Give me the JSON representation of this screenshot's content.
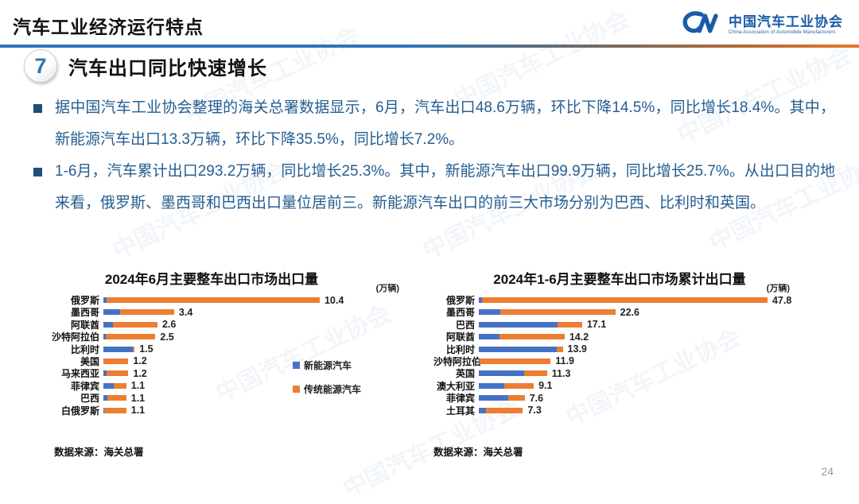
{
  "slide": {
    "header_title": "汽车工业经济运行特点",
    "page_number": "24",
    "watermark_text": "中国汽车工业协会"
  },
  "logo": {
    "name_cn": "中国汽车工业协会",
    "name_en": "China Association of Automobile Manufacturers"
  },
  "section": {
    "number": "7",
    "title": "汽车出口同比快速增长"
  },
  "bullets": [
    "据中国汽车工业协会整理的海关总署数据显示，6月，汽车出口48.6万辆，环比下降14.5%，同比增长18.4%。其中，新能源汽车出口13.3万辆，环比下降35.5%，同比增长7.2%。",
    "1-6月，汽车累计出口293.2万辆，同比增长25.3%。其中，新能源汽车出口99.9万辆，同比增长25.7%。从出口目的地来看，俄罗斯、墨西哥和巴西出口量位居前三。新能源汽车出口的前三大市场分别为巴西、比利时和英国。"
  ],
  "legend": {
    "nev": "新能源汽车",
    "ice": "传统能源汽车"
  },
  "colors": {
    "nev_blue": "#4472C4",
    "ice_orange": "#ED7D31",
    "accent_blue": "#2E75B6",
    "accent_orange": "#E87722",
    "text_blue": "#255E91",
    "logo_blue": "#1B5CA8"
  },
  "source_note": "数据来源：海关总署",
  "chart_data": [
    {
      "type": "bar",
      "orientation": "horizontal",
      "stacked": true,
      "title": "2024年6月主要整车出口市场出口量",
      "unit": "(万辆)",
      "categories": [
        "俄罗斯",
        "墨西哥",
        "阿联酋",
        "沙特阿拉伯",
        "比利时",
        "美国",
        "马来西亚",
        "菲律宾",
        "巴西",
        "白俄罗斯"
      ],
      "totals": [
        10.4,
        3.4,
        2.6,
        2.5,
        1.5,
        1.2,
        1.2,
        1.1,
        1.1,
        1.1
      ],
      "series": [
        {
          "name": "新能源汽车",
          "values": [
            0.15,
            0.8,
            0.45,
            0.1,
            1.4,
            0.0,
            0.15,
            0.5,
            0.2,
            0.05
          ]
        },
        {
          "name": "传统能源汽车",
          "values": [
            10.25,
            2.6,
            2.15,
            2.4,
            0.1,
            1.2,
            1.05,
            0.6,
            0.9,
            1.05
          ]
        }
      ],
      "legend_position": "right",
      "grid": false
    },
    {
      "type": "bar",
      "orientation": "horizontal",
      "stacked": true,
      "title": "2024年1-6月主要整车出口市场累计出口量",
      "unit": "(万辆)",
      "categories": [
        "俄罗斯",
        "墨西哥",
        "巴西",
        "阿联酋",
        "比利时",
        "沙特阿拉伯",
        "英国",
        "澳大利亚",
        "菲律宾",
        "土耳其"
      ],
      "totals": [
        47.8,
        22.6,
        17.1,
        14.2,
        13.9,
        11.9,
        11.3,
        9.1,
        7.6,
        7.3
      ],
      "series": [
        {
          "name": "新能源汽车",
          "values": [
            0.5,
            3.5,
            13.0,
            3.4,
            12.9,
            0.1,
            7.5,
            4.2,
            4.9,
            1.2
          ]
        },
        {
          "name": "传统能源汽车",
          "values": [
            47.3,
            19.1,
            4.1,
            10.8,
            1.0,
            11.8,
            3.8,
            4.9,
            2.7,
            6.1
          ]
        }
      ],
      "legend_position": "none",
      "grid": false
    }
  ]
}
